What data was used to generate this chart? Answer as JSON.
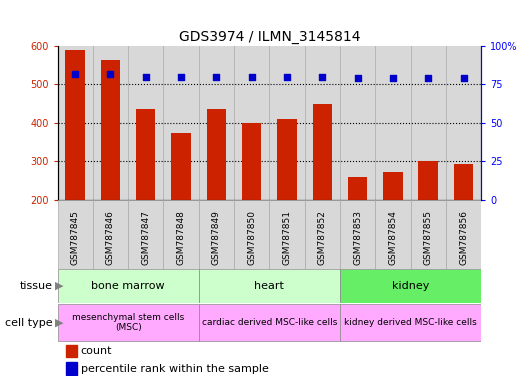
{
  "title": "GDS3974 / ILMN_3145814",
  "samples": [
    "GSM787845",
    "GSM787846",
    "GSM787847",
    "GSM787848",
    "GSM787849",
    "GSM787850",
    "GSM787851",
    "GSM787852",
    "GSM787853",
    "GSM787854",
    "GSM787855",
    "GSM787856"
  ],
  "counts": [
    590,
    565,
    437,
    373,
    437,
    400,
    410,
    450,
    258,
    273,
    300,
    292
  ],
  "percentile_ranks": [
    82,
    82,
    80,
    80,
    80,
    80,
    80,
    80,
    79,
    79,
    79,
    79
  ],
  "bar_color": "#cc2200",
  "dot_color": "#0000cc",
  "ylim_left": [
    200,
    600
  ],
  "ylim_right": [
    0,
    100
  ],
  "yticks_left": [
    200,
    300,
    400,
    500,
    600
  ],
  "yticks_right": [
    0,
    25,
    50,
    75,
    100
  ],
  "ytick_labels_right": [
    "0",
    "25",
    "50",
    "75",
    "100%"
  ],
  "tissue_groups": [
    {
      "label": "bone marrow",
      "start": 0,
      "end": 3,
      "color": "#ccffcc"
    },
    {
      "label": "heart",
      "start": 4,
      "end": 7,
      "color": "#ccffcc"
    },
    {
      "label": "kidney",
      "start": 8,
      "end": 11,
      "color": "#66ee66"
    }
  ],
  "cell_type_groups": [
    {
      "label": "mesenchymal stem cells\n(MSC)",
      "start": 0,
      "end": 3,
      "color": "#ffaaff"
    },
    {
      "label": "cardiac derived MSC-like cells",
      "start": 4,
      "end": 7,
      "color": "#ffaaff"
    },
    {
      "label": "kidney derived MSC-like cells",
      "start": 8,
      "end": 11,
      "color": "#ffaaff"
    }
  ],
  "tissue_label": "tissue",
  "cell_type_label": "cell type",
  "legend_count": "count",
  "legend_percentile": "percentile rank within the sample",
  "background_color": "#ffffff",
  "grid_color": "#666666",
  "bar_bottom": 200,
  "col_bg_color": "#d8d8d8",
  "col_border_color": "#aaaaaa"
}
